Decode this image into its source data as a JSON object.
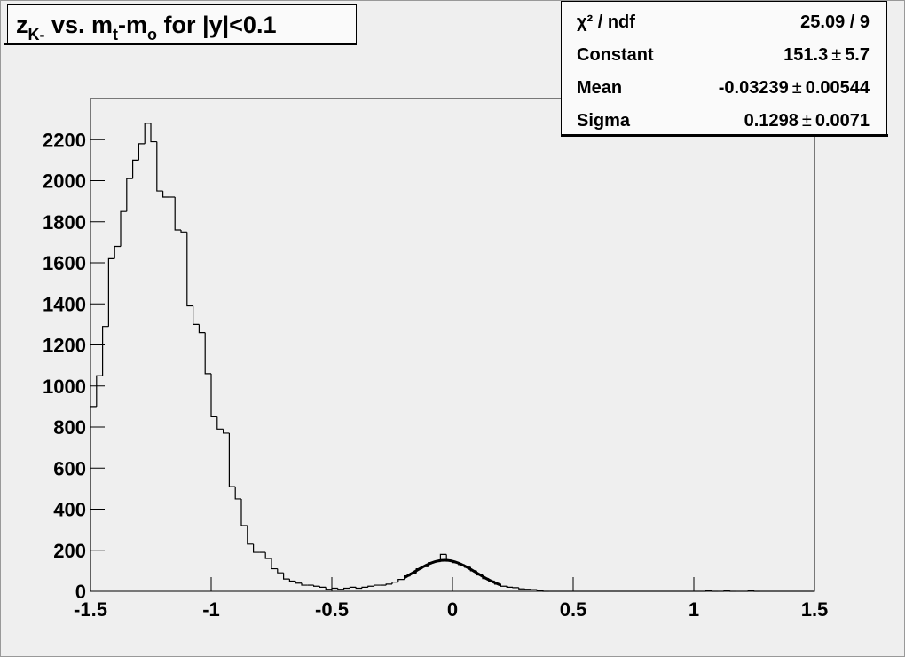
{
  "chart_data": {
    "type": "histogram",
    "title": [
      {
        "text": "z"
      },
      {
        "text": "K-",
        "sub": true
      },
      {
        "text": " vs. m"
      },
      {
        "text": "t",
        "sub": true
      },
      {
        "text": "-m"
      },
      {
        "text": "o",
        "sub": true
      },
      {
        "text": " for |y|<0.1"
      }
    ],
    "bins": [
      -1.5,
      -1.475,
      -1.45,
      -1.425,
      -1.4,
      -1.375,
      -1.35,
      -1.325,
      -1.3,
      -1.275,
      -1.25,
      -1.225,
      -1.2,
      -1.175,
      -1.15,
      -1.125,
      -1.1,
      -1.075,
      -1.05,
      -1.025,
      -1,
      -0.975,
      -0.95,
      -0.925,
      -0.9,
      -0.875,
      -0.85,
      -0.825,
      -0.8,
      -0.775,
      -0.75,
      -0.725,
      -0.7,
      -0.675,
      -0.65,
      -0.625,
      -0.6,
      -0.575,
      -0.55,
      -0.525,
      -0.5,
      -0.475,
      -0.45,
      -0.425,
      -0.4,
      -0.375,
      -0.35,
      -0.325,
      -0.3,
      -0.275,
      -0.25,
      -0.225,
      -0.2,
      -0.175,
      -0.15,
      -0.125,
      -0.1,
      -0.075,
      -0.05,
      -0.025,
      0,
      0.025,
      0.05,
      0.075,
      0.1,
      0.125,
      0.15,
      0.175,
      0.2,
      0.225,
      0.25,
      0.275,
      0.3,
      0.325,
      0.35,
      0.375,
      0.4,
      0.425,
      0.45,
      0.475,
      0.5,
      0.525,
      0.55,
      0.575,
      0.6,
      0.625,
      0.65,
      0.675,
      0.7,
      0.725,
      0.75,
      0.775,
      0.8,
      0.825,
      0.85,
      0.875,
      0.9,
      0.925,
      0.95,
      0.975,
      1,
      1.025,
      1.05,
      1.075,
      1.1,
      1.125,
      1.15,
      1.175,
      1.2,
      1.225,
      1.25,
      1.275,
      1.3,
      1.325,
      1.35,
      1.375,
      1.4,
      1.425,
      1.45,
      1.475,
      1.5
    ],
    "values": [
      900,
      1050,
      1290,
      1620,
      1680,
      1850,
      2010,
      2100,
      2180,
      2280,
      2190,
      1950,
      1920,
      1920,
      1760,
      1750,
      1390,
      1300,
      1260,
      1060,
      850,
      790,
      770,
      510,
      450,
      320,
      230,
      190,
      190,
      160,
      110,
      90,
      60,
      50,
      40,
      30,
      30,
      25,
      20,
      10,
      15,
      10,
      15,
      20,
      15,
      20,
      25,
      30,
      30,
      35,
      45,
      58,
      75,
      88,
      110,
      120,
      140,
      145,
      180,
      150,
      140,
      130,
      118,
      100,
      80,
      62,
      50,
      35,
      25,
      20,
      18,
      12,
      10,
      8,
      5,
      0,
      0,
      0,
      0,
      0,
      0,
      0,
      0,
      0,
      0,
      0,
      0,
      0,
      0,
      0,
      0,
      0,
      0,
      0,
      0,
      0,
      0,
      0,
      0,
      0,
      0,
      0,
      5,
      0,
      0,
      3,
      0,
      0,
      0,
      3,
      0,
      0,
      0,
      0,
      0,
      0,
      0,
      0,
      0,
      0
    ],
    "color": "#000000",
    "xlim": [
      -1.5,
      1.5
    ],
    "xticks": [
      -1.5,
      -1,
      -0.5,
      0,
      0.5,
      1,
      1.5
    ],
    "ylim": [
      0,
      2400
    ],
    "yticks": [
      0,
      200,
      400,
      600,
      800,
      1000,
      1200,
      1400,
      1600,
      1800,
      2000,
      2200
    ],
    "grid": false,
    "fit_range": [
      -0.2,
      0.2
    ],
    "plus_minus": "±",
    "stats": [
      {
        "label": "χ² / ndf",
        "value": "25.09 / 9"
      },
      {
        "label": "Constant",
        "value": 151.3,
        "error": 5.7
      },
      {
        "label": "Mean",
        "value": -0.03239,
        "error": 0.00544
      },
      {
        "label": "Sigma",
        "value": 0.1298,
        "error": 0.0071
      }
    ]
  }
}
